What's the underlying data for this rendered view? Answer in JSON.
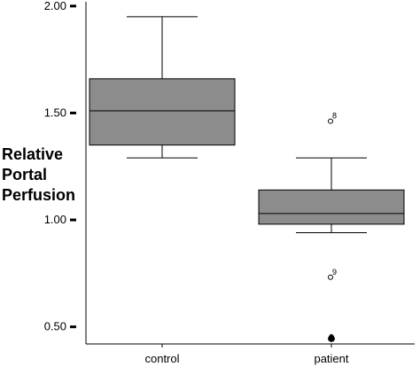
{
  "chart_data": {
    "type": "box",
    "ylabel_lines": [
      "Relative",
      "Portal",
      "Perfusion"
    ],
    "ylim": [
      0.42,
      2.02
    ],
    "yticks": [
      {
        "value": 0.5,
        "label": "0.50"
      },
      {
        "value": 1.0,
        "label": "1.00"
      },
      {
        "value": 1.5,
        "label": "1.50"
      },
      {
        "value": 2.0,
        "label": "2.00"
      }
    ],
    "categories": [
      "control",
      "patient"
    ],
    "box_color": "#8c8c8c",
    "boxes": [
      {
        "category": "control",
        "whisker_low": 1.29,
        "q1": 1.35,
        "median": 1.51,
        "q3": 1.66,
        "whisker_high": 1.95,
        "outliers": []
      },
      {
        "category": "patient",
        "whisker_low": 0.94,
        "q1": 0.98,
        "median": 1.03,
        "q3": 1.14,
        "whisker_high": 1.29,
        "outliers": [
          {
            "value": 1.47,
            "marker": "circle",
            "label": "8"
          },
          {
            "value": 0.74,
            "marker": "circle",
            "label": "9"
          },
          {
            "value": 0.45,
            "marker": "extreme"
          }
        ]
      }
    ]
  }
}
